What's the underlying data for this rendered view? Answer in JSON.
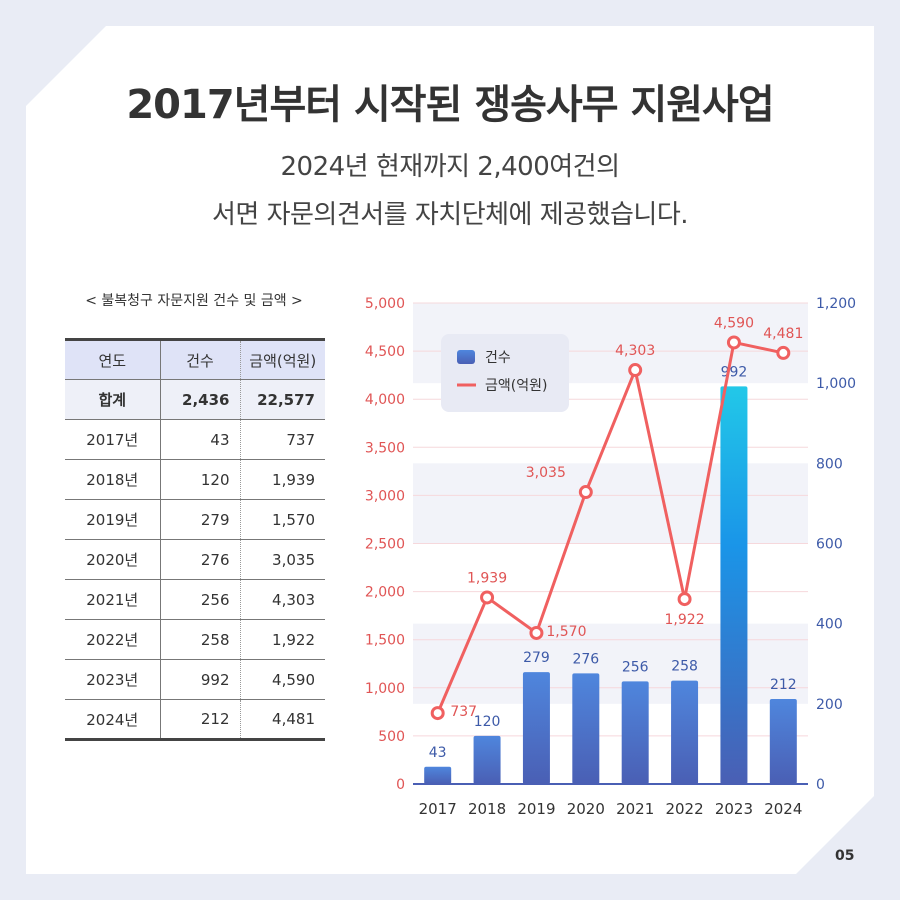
{
  "title": "2017년부터 시작된 쟁송사무 지원사업",
  "subtitle_line1": "2024년 현재까지 2,400여건의",
  "subtitle_line2": "서면 자문의견서를 자치단체에 제공했습니다.",
  "table": {
    "caption": "< 불복청구 자문지원 건수 및 금액 >",
    "headers": [
      "연도",
      "건수",
      "금액(억원)"
    ],
    "total": {
      "label": "합계",
      "count": "2,436",
      "amount": "22,577"
    },
    "rows": [
      {
        "year": "2017년",
        "count": "43",
        "amount": "737"
      },
      {
        "year": "2018년",
        "count": "120",
        "amount": "1,939"
      },
      {
        "year": "2019년",
        "count": "279",
        "amount": "1,570"
      },
      {
        "year": "2020년",
        "count": "276",
        "amount": "3,035"
      },
      {
        "year": "2021년",
        "count": "256",
        "amount": "4,303"
      },
      {
        "year": "2022년",
        "count": "258",
        "amount": "1,922"
      },
      {
        "year": "2023년",
        "count": "992",
        "amount": "4,590"
      },
      {
        "year": "2024년",
        "count": "212",
        "amount": "4,481"
      }
    ]
  },
  "page_number": "05",
  "colors": {
    "bar_bottom": "#4a5fb4",
    "bar_top": "#4f86dd",
    "bar_highlight_top": "#22c8e8",
    "line": "#f06060",
    "left_axis": "#e05555",
    "right_axis": "#3d5aa8"
  },
  "chart_data": {
    "type": "bar",
    "categories": [
      "2017",
      "2018",
      "2019",
      "2020",
      "2021",
      "2022",
      "2023",
      "2024"
    ],
    "series": [
      {
        "name": "건수",
        "type": "bar",
        "axis": "right",
        "values": [
          43,
          120,
          279,
          276,
          256,
          258,
          992,
          212
        ],
        "labels": [
          "43",
          "120",
          "279",
          "276",
          "256",
          "258",
          "992",
          "212"
        ]
      },
      {
        "name": "금액(억원)",
        "type": "line",
        "axis": "left",
        "values": [
          737,
          1939,
          1570,
          3035,
          4303,
          1922,
          4590,
          4481
        ],
        "labels": [
          "737",
          "1,939",
          "1,570",
          "3,035",
          "4,303",
          "1,922",
          "4,590",
          "4,481"
        ]
      }
    ],
    "left_axis": {
      "ylim": [
        0,
        5000
      ],
      "ticks": [
        "0",
        "500",
        "1,000",
        "1,500",
        "2,000",
        "2,500",
        "3,000",
        "3,500",
        "4,000",
        "4,500",
        "5,000"
      ]
    },
    "right_axis": {
      "ylim": [
        0,
        1200
      ],
      "ticks": [
        "0",
        "200",
        "400",
        "600",
        "800",
        "1,000",
        "1,200"
      ]
    },
    "legend_position": "top-left",
    "grid": true
  }
}
